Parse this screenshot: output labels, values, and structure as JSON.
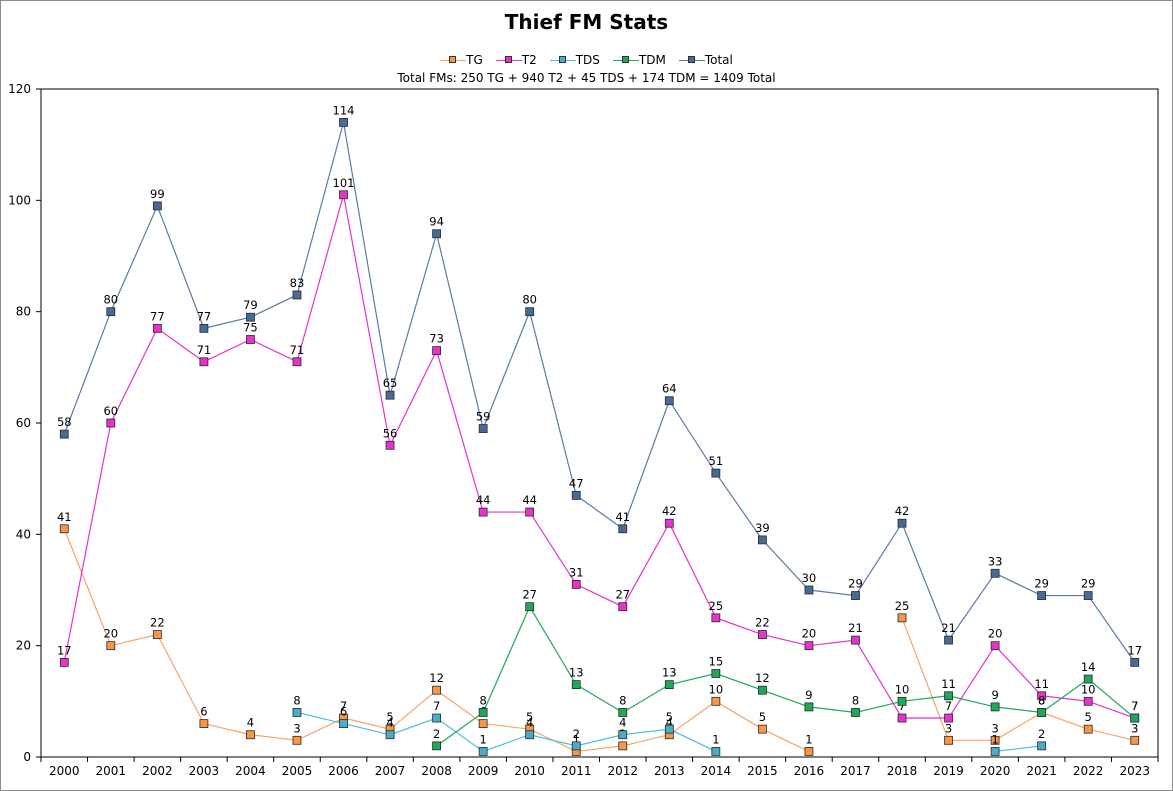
{
  "chart_data": {
    "type": "line",
    "title": "Thief FM Stats",
    "subtitle": "Total FMs: 250 TG + 940 T2 + 45 TDS + 174 TDM = 1409 Total",
    "xlabel": "",
    "ylabel": "",
    "ylim": [
      0,
      120
    ],
    "yticks": [
      0,
      20,
      40,
      60,
      80,
      100,
      120
    ],
    "grid": false,
    "legend_position": "top-center",
    "categories": [
      "2000",
      "2001",
      "2002",
      "2003",
      "2004",
      "2005",
      "2006",
      "2007",
      "2008",
      "2009",
      "2010",
      "2011",
      "2012",
      "2013",
      "2014",
      "2015",
      "2016",
      "2017",
      "2018",
      "2019",
      "2020",
      "2021",
      "2022",
      "2023"
    ],
    "series": [
      {
        "name": "TG",
        "color": "#f79646",
        "line": "#f7a46b",
        "values": [
          41,
          20,
          22,
          6,
          4,
          3,
          7,
          5,
          12,
          6,
          5,
          1,
          2,
          4,
          10,
          5,
          1,
          null,
          25,
          3,
          3,
          8,
          5,
          3
        ]
      },
      {
        "name": "T2",
        "color": "#e633c8",
        "line": "#e633c8",
        "values": [
          17,
          60,
          77,
          71,
          75,
          71,
          101,
          56,
          73,
          44,
          44,
          31,
          27,
          42,
          25,
          22,
          20,
          21,
          7,
          7,
          20,
          11,
          10,
          7
        ]
      },
      {
        "name": "TDS",
        "color": "#4bacc6",
        "line": "#4bbfe0",
        "values": [
          null,
          null,
          null,
          null,
          null,
          8,
          6,
          4,
          7,
          1,
          4,
          2,
          4,
          5,
          1,
          null,
          null,
          null,
          null,
          null,
          1,
          2,
          null,
          null
        ]
      },
      {
        "name": "TDM",
        "color": "#1fa85a",
        "line": "#1fa85a",
        "values": [
          null,
          null,
          null,
          null,
          null,
          null,
          null,
          null,
          2,
          8,
          27,
          13,
          8,
          13,
          15,
          12,
          9,
          8,
          10,
          11,
          9,
          8,
          14,
          7
        ]
      },
      {
        "name": "Total",
        "color": "#4a6a96",
        "line": "#5b7ba6",
        "values": [
          58,
          80,
          99,
          77,
          79,
          83,
          114,
          65,
          94,
          59,
          80,
          47,
          41,
          64,
          51,
          39,
          30,
          29,
          42,
          21,
          33,
          29,
          29,
          17
        ]
      }
    ]
  }
}
